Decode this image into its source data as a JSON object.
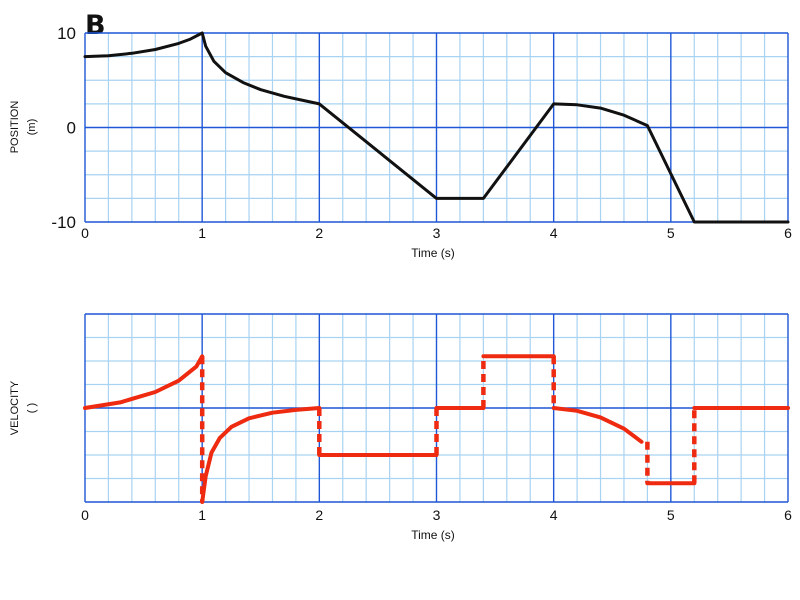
{
  "panel_label": "B",
  "colors": {
    "minor_grid": "#a9d3f2",
    "major_grid": "#1f57d6",
    "position_line": "#111111",
    "velocity_line": "#ee2a10"
  },
  "chart_data": [
    {
      "type": "line",
      "xlabel": "Time (s)",
      "ylabel_line1": "POSITION",
      "ylabel_line2": "(m)",
      "xlim": [
        0,
        6
      ],
      "ylim": [
        -10,
        10
      ],
      "x_ticks": [
        "0",
        "1",
        "2",
        "3",
        "4",
        "5",
        "6"
      ],
      "y_ticks": [
        {
          "value": 10,
          "label": "10"
        },
        {
          "value": 0,
          "label": "0"
        },
        {
          "value": -10,
          "label": "-10"
        }
      ],
      "grid": true,
      "series": [
        {
          "points": [
            [
              0,
              7.5
            ],
            [
              0.2,
              7.6
            ],
            [
              0.4,
              7.85
            ],
            [
              0.6,
              8.25
            ],
            [
              0.8,
              8.9
            ],
            [
              0.9,
              9.35
            ],
            [
              1.0,
              10.0
            ],
            [
              1.03,
              8.6
            ],
            [
              1.1,
              7.0
            ],
            [
              1.2,
              5.8
            ],
            [
              1.35,
              4.75
            ],
            [
              1.5,
              4.0
            ],
            [
              1.7,
              3.3
            ],
            [
              1.85,
              2.9
            ],
            [
              2.0,
              2.5
            ],
            [
              3.0,
              -7.5
            ],
            [
              3.4,
              -7.5
            ],
            [
              4.0,
              2.5
            ],
            [
              4.2,
              2.4
            ],
            [
              4.4,
              2.05
            ],
            [
              4.6,
              1.3
            ],
            [
              4.8,
              0.2
            ],
            [
              5.2,
              -10.0
            ],
            [
              6.0,
              -10.0
            ]
          ]
        }
      ]
    },
    {
      "type": "line",
      "xlabel": "Time (s)",
      "ylabel_line1": "VELOCITY",
      "ylabel_line2": "(    )",
      "xlim": [
        0,
        6
      ],
      "ylim": [
        -40,
        40
      ],
      "x_ticks": [
        "0",
        "1",
        "2",
        "3",
        "4",
        "5",
        "6"
      ],
      "grid": true,
      "series": [
        {
          "style": "solid",
          "segments": [
            [
              [
                0,
                0
              ],
              [
                0.3,
                2.4
              ],
              [
                0.6,
                6.8
              ],
              [
                0.8,
                11.6
              ],
              [
                0.95,
                17.6
              ],
              [
                1.0,
                22.0
              ]
            ],
            [
              [
                1.0,
                -40.0
              ],
              [
                1.03,
                -29.0
              ],
              [
                1.08,
                -19.0
              ],
              [
                1.15,
                -12.8
              ],
              [
                1.25,
                -8.0
              ],
              [
                1.4,
                -4.4
              ],
              [
                1.6,
                -2.0
              ],
              [
                1.8,
                -0.8
              ],
              [
                2.0,
                0.0
              ]
            ],
            [
              [
                2.0,
                -20.0
              ],
              [
                3.0,
                -20.0
              ]
            ],
            [
              [
                3.0,
                0.0
              ],
              [
                3.4,
                0.0
              ]
            ],
            [
              [
                3.4,
                22.0
              ],
              [
                4.0,
                22.0
              ]
            ],
            [
              [
                4.0,
                0.0
              ],
              [
                4.2,
                -1.2
              ],
              [
                4.4,
                -4.0
              ],
              [
                4.6,
                -8.8
              ],
              [
                4.75,
                -14.4
              ]
            ],
            [
              [
                4.8,
                -32.0
              ],
              [
                5.2,
                -32.0
              ]
            ],
            [
              [
                5.2,
                0.0
              ],
              [
                6.0,
                0.0
              ]
            ]
          ]
        },
        {
          "style": "dashed",
          "segments": [
            [
              [
                1.0,
                22.0
              ],
              [
                1.0,
                -40.0
              ]
            ],
            [
              [
                2.0,
                0.0
              ],
              [
                2.0,
                -20.0
              ]
            ],
            [
              [
                3.0,
                -20.0
              ],
              [
                3.0,
                0.0
              ]
            ],
            [
              [
                3.4,
                0.0
              ],
              [
                3.4,
                22.0
              ]
            ],
            [
              [
                4.0,
                22.0
              ],
              [
                4.0,
                0.0
              ]
            ],
            [
              [
                4.8,
                -14.4
              ],
              [
                4.8,
                -32.0
              ]
            ],
            [
              [
                5.2,
                -32.0
              ],
              [
                5.2,
                0.0
              ]
            ]
          ]
        }
      ]
    }
  ]
}
